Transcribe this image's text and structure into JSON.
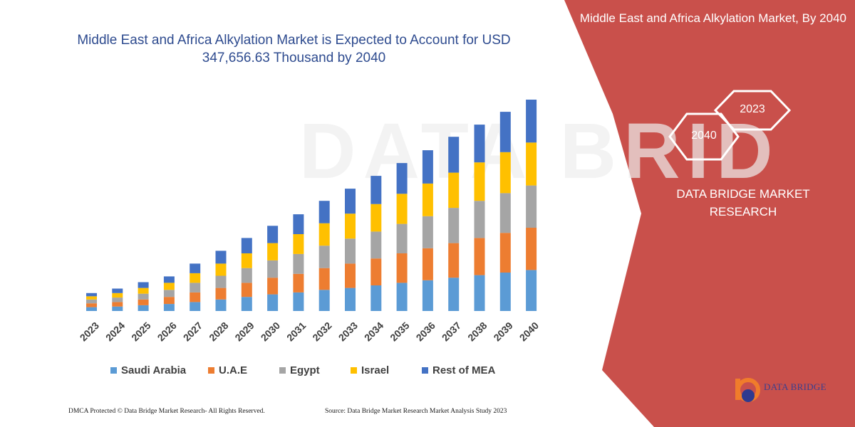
{
  "header": {
    "title": "Middle East and Africa Alkylation Market is Expected to Account for USD 347,656.63 Thousand by 2040"
  },
  "side_panel": {
    "title": "Middle East and Africa Alkylation Market, By 2040",
    "hex_years": [
      "2023",
      "2040"
    ],
    "brand": "DATA BRIDGE MARKET RESEARCH",
    "color": "#c9504b"
  },
  "footer": {
    "left": "DMCA Protected © Data Bridge Market Research- All Rights Reserved.",
    "right": "Source: Data Bridge Market Research Market Analysis Study 2023"
  },
  "logo": {
    "text": "DATA BRIDGE"
  },
  "chart_data": {
    "type": "bar",
    "stacked": true,
    "categories": [
      "2023",
      "2024",
      "2025",
      "2026",
      "2027",
      "2028",
      "2029",
      "2030",
      "2031",
      "2032",
      "2033",
      "2034",
      "2035",
      "2036",
      "2037",
      "2038",
      "2039",
      "2040"
    ],
    "series": [
      {
        "name": "Saudi Arabia",
        "color": "#5b9bd5",
        "values": [
          6,
          7,
          9,
          11,
          14,
          18,
          22,
          26,
          29,
          33,
          36,
          40,
          44,
          48,
          52,
          56,
          60,
          64
        ]
      },
      {
        "name": "U.A.E",
        "color": "#ed7d31",
        "values": [
          6,
          7,
          9,
          11,
          15,
          18,
          22,
          26,
          29,
          34,
          38,
          42,
          46,
          50,
          54,
          58,
          62,
          66
        ]
      },
      {
        "name": "Egypt",
        "color": "#a5a5a5",
        "values": [
          6,
          7,
          9,
          11,
          15,
          19,
          23,
          27,
          31,
          35,
          39,
          42,
          46,
          50,
          55,
          58,
          62,
          66
        ]
      },
      {
        "name": "Israel",
        "color": "#ffc000",
        "values": [
          5,
          7,
          9,
          11,
          15,
          19,
          23,
          27,
          31,
          35,
          39,
          43,
          47,
          51,
          55,
          60,
          64,
          67
        ]
      },
      {
        "name": "Rest of MEA",
        "color": "#4472c4",
        "values": [
          5,
          7,
          9,
          10,
          15,
          20,
          24,
          27,
          31,
          35,
          39,
          44,
          48,
          52,
          56,
          59,
          63,
          67
        ]
      }
    ],
    "legend_position": "bottom",
    "grid": false
  }
}
